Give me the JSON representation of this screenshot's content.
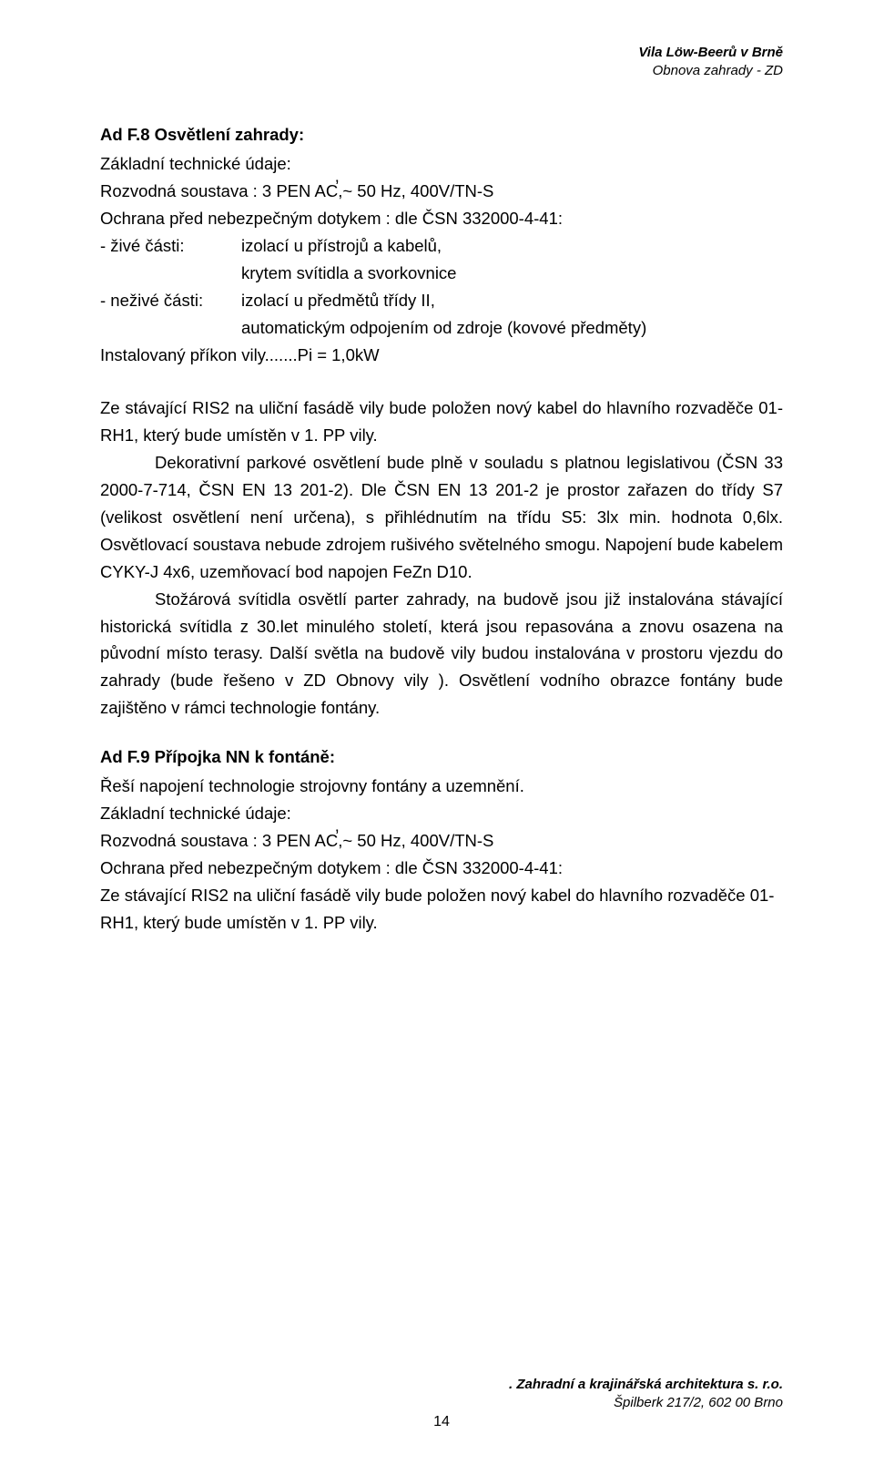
{
  "header": {
    "line1": "Vila Löw-Beerů v Brně",
    "line2": "Obnova zahrady - ZD"
  },
  "section_f8": {
    "title": "Ad F.8  Osvětlení zahrady:",
    "tech_heading": "Základní technické údaje:",
    "rozvodna": "Rozvodná soustava : 3 PEN AC̕,~ 50 Hz, 400V/TN-S",
    "ochrana": "Ochrana před nebezpečným dotykem : dle ČSN 332000-4-41:",
    "zive_label": "- živé části:",
    "zive_v1": "izolací u přístrojů a kabelů,",
    "zive_v2": "krytem svítidla a svorkovnice",
    "nezive_label": "- neživé části:",
    "nezive_v1": "izolací u předmětů třídy II,",
    "nezive_v2": "automatickým odpojením od zdroje (kovové předměty)",
    "prikon": "Instalovaný příkon vily.......Pi   =  1,0kW",
    "para1_a": "Ze stávající RIS2 na uliční fasádě vily bude položen nový kabel do hlavního rozvaděče 01-RH1, který bude umístěn v 1. PP vily.",
    "para2": "Dekorativní parkové osvětlení bude plně v souladu s platnou legislativou (ČSN 33 2000-7-714, ČSN EN 13 201-2).  Dle ČSN EN 13 201-2 je prostor zařazen do třídy S7 (velikost osvětlení není určena), s přihlédnutím na třídu   S5: 3lx min. hodnota 0,6lx. Osvětlovací soustava nebude zdrojem rušivého světelného smogu. Napojení bude kabelem CYKY-J 4x6, uzemňovací bod napojen FeZn D10.",
    "para3": "Stožárová svítidla osvětlí parter zahrady, na budově jsou již instalována stávající historická svítidla z 30.let minulého století, která jsou repasována a znovu osazena na původní místo terasy. Další světla na budově vily budou  instalována v prostoru vjezdu do zahrady (bude řešeno v ZD Obnovy vily ).  Osvětlení vodního obrazce fontány bude zajištěno v rámci technologie fontány."
  },
  "section_f9": {
    "title": "Ad F.9  Přípojka NN k fontáně:",
    "line1": "Řeší napojení technologie strojovny fontány a uzemnění.",
    "tech_heading": "Základní technické údaje:",
    "rozvodna": "Rozvodná soustava : 3 PEN AC̕,~ 50 Hz, 400V/TN-S",
    "ochrana": "Ochrana před nebezpečným dotykem : dle ČSN 332000-4-41:",
    "para": "Ze stávající RIS2 na uliční fasádě vily bude položen nový kabel do hlavního rozvaděče 01-RH1, který bude umístěn v 1. PP vily."
  },
  "footer": {
    "right1": ". Zahradní a krajinářská architektura  s. r.o.",
    "right2": "Špilberk 217/2, 602 00 Brno",
    "page_no": "14"
  }
}
